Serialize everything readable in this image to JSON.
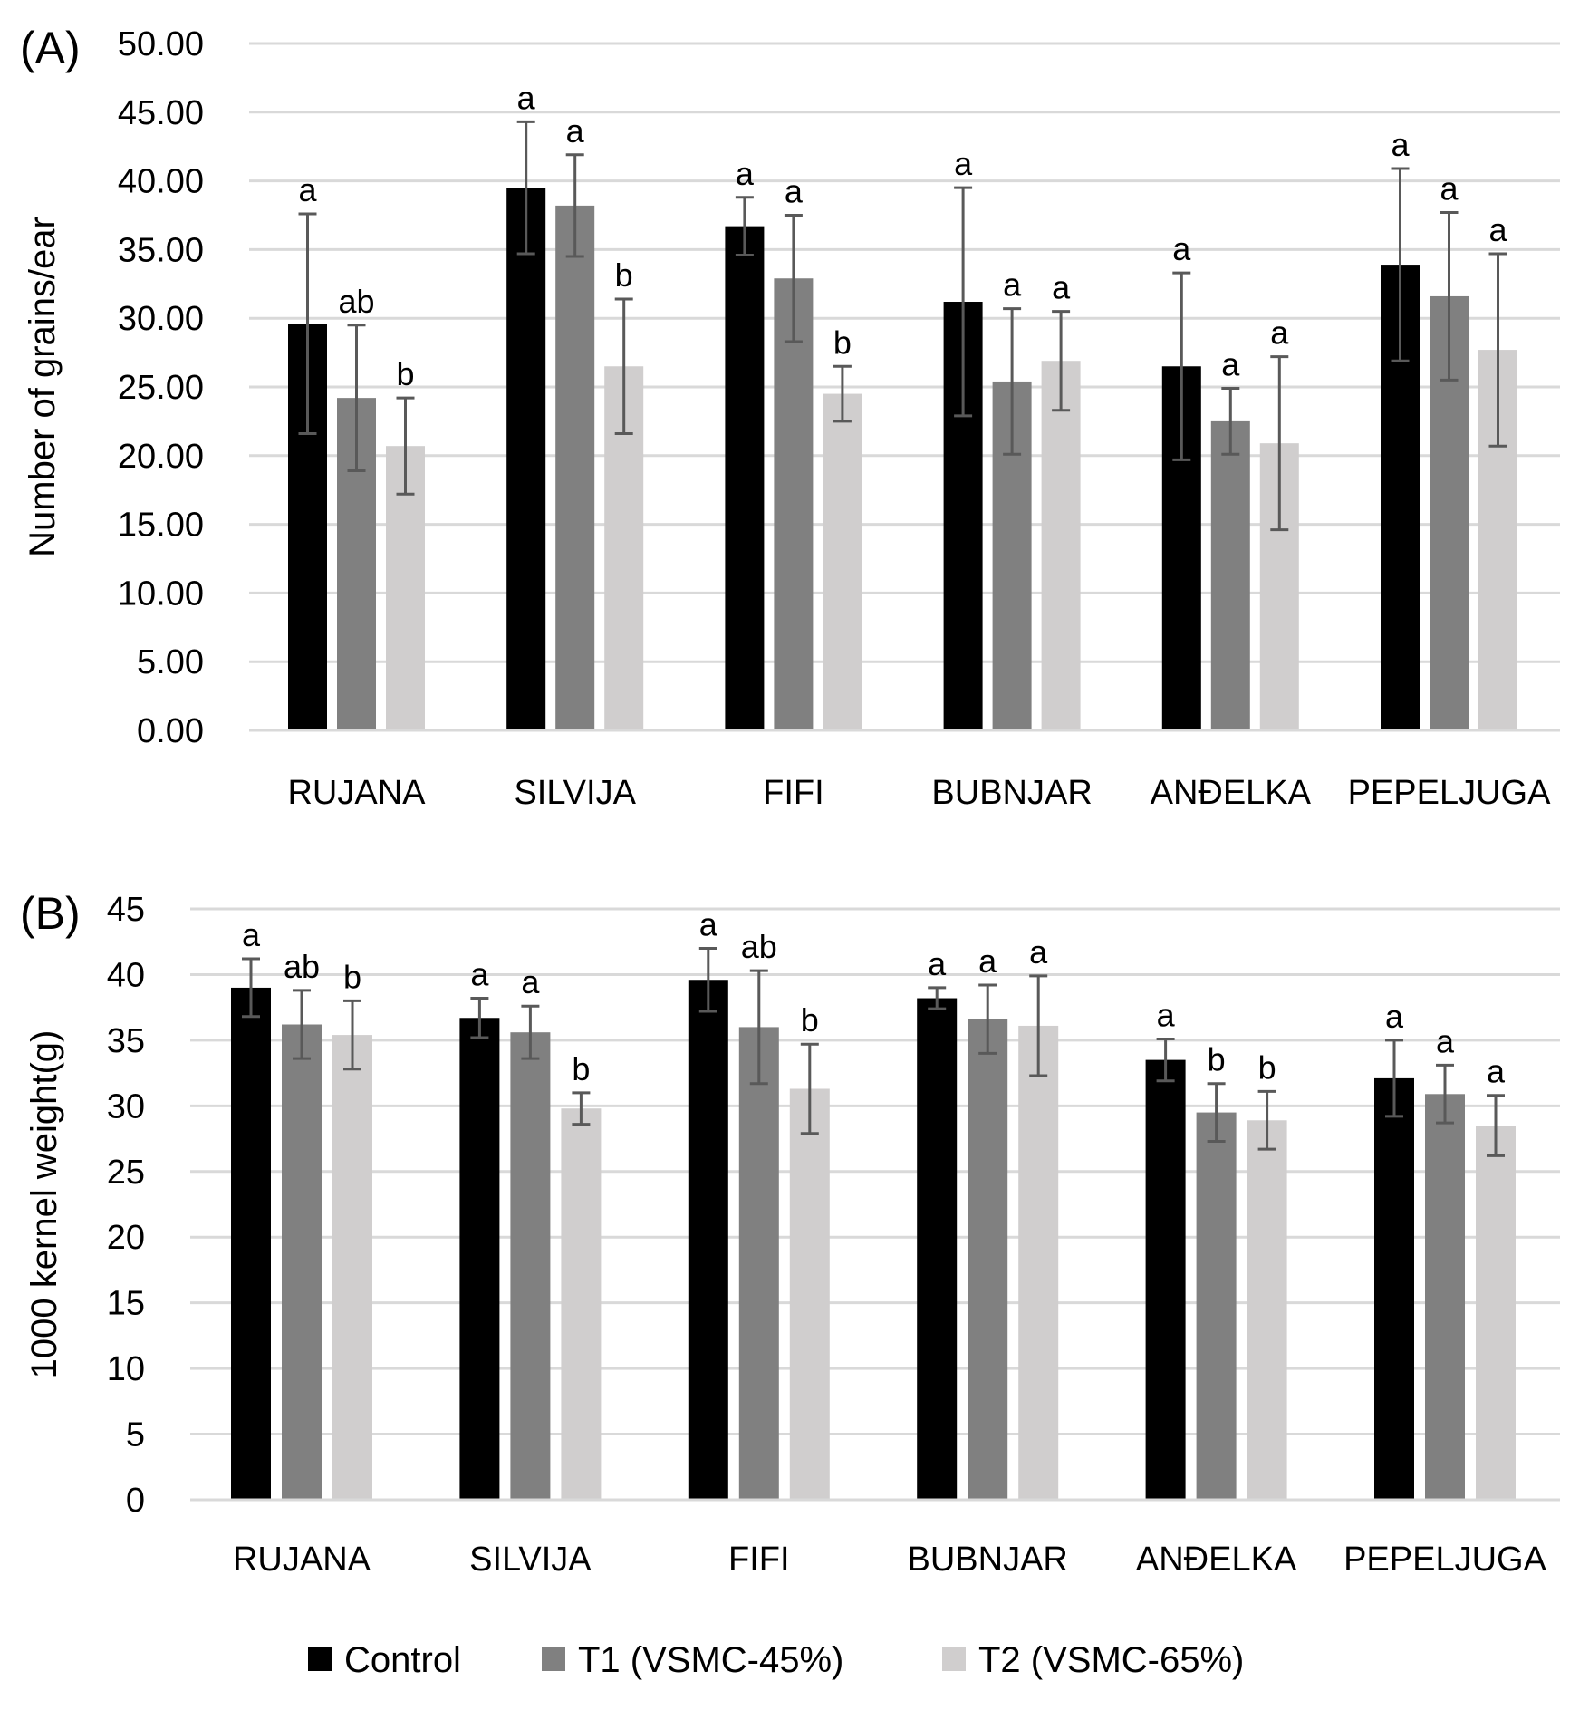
{
  "chart_data": [
    {
      "type": "bar",
      "panel_label": "(A)",
      "ylabel": "Number of grains/ear",
      "xlabel": "",
      "ylim": [
        0,
        50
      ],
      "yticks": [
        "0.00",
        "5.00",
        "10.00",
        "15.00",
        "20.00",
        "25.00",
        "30.00",
        "35.00",
        "40.00",
        "45.00",
        "50.00"
      ],
      "grid": true,
      "categories": [
        "RUJANA",
        "SILVIJA",
        "FIFI",
        "BUBNJAR",
        "ANĐELKA",
        "PEPELJUGA"
      ],
      "series": [
        {
          "name": "Control",
          "color": "#000000",
          "values": [
            29.6,
            39.5,
            36.7,
            31.2,
            26.5,
            33.9
          ],
          "errors": [
            8.0,
            4.8,
            2.1,
            8.3,
            6.8,
            7.0
          ],
          "labels": [
            "a",
            "a",
            "a",
            "a",
            "a",
            "a"
          ]
        },
        {
          "name": "T1 (VSMC-45%)",
          "color": "#808080",
          "values": [
            24.2,
            38.2,
            32.9,
            25.4,
            22.5,
            31.6
          ],
          "errors": [
            5.3,
            3.7,
            4.6,
            5.3,
            2.4,
            6.1
          ],
          "labels": [
            "ab",
            "a",
            "a",
            "a",
            "a",
            "a"
          ]
        },
        {
          "name": "T2 (VSMC-65%)",
          "color": "#d0cece",
          "values": [
            20.7,
            26.5,
            24.5,
            26.9,
            20.9,
            27.7
          ],
          "errors": [
            3.5,
            4.9,
            2.0,
            3.6,
            6.3,
            7.0
          ],
          "labels": [
            "b",
            "b",
            "b",
            "a",
            "a",
            "a"
          ]
        }
      ]
    },
    {
      "type": "bar",
      "panel_label": "(B)",
      "ylabel": "1000 kernel weight(g)",
      "xlabel": "",
      "ylim": [
        0,
        45
      ],
      "yticks": [
        "0",
        "5",
        "10",
        "15",
        "20",
        "25",
        "30",
        "35",
        "40",
        "45"
      ],
      "grid": true,
      "categories": [
        "RUJANA",
        "SILVIJA",
        "FIFI",
        "BUBNJAR",
        "ANĐELKA",
        "PEPELJUGA"
      ],
      "series": [
        {
          "name": "Control",
          "color": "#000000",
          "values": [
            39.0,
            36.7,
            39.6,
            38.2,
            33.5,
            32.1
          ],
          "errors": [
            2.2,
            1.5,
            2.4,
            0.8,
            1.6,
            2.9
          ],
          "labels": [
            "a",
            "a",
            "a",
            "a",
            "a",
            "a"
          ]
        },
        {
          "name": "T1 (VSMC-45%)",
          "color": "#808080",
          "values": [
            36.2,
            35.6,
            36.0,
            36.6,
            29.5,
            30.9
          ],
          "errors": [
            2.6,
            2.0,
            4.3,
            2.6,
            2.2,
            2.2
          ],
          "labels": [
            "ab",
            "a",
            "ab",
            "a",
            "b",
            "a"
          ]
        },
        {
          "name": "T2 (VSMC-65%)",
          "color": "#d0cece",
          "values": [
            35.4,
            29.8,
            31.3,
            36.1,
            28.9,
            28.5
          ],
          "errors": [
            2.6,
            1.2,
            3.4,
            3.8,
            2.2,
            2.3
          ],
          "labels": [
            "b",
            "b",
            "b",
            "a",
            "b",
            "a"
          ]
        }
      ]
    }
  ],
  "legend": {
    "placement": "bottom",
    "items": [
      {
        "label": "Control",
        "color": "#000000"
      },
      {
        "label": "T1 (VSMC-45%)",
        "color": "#808080"
      },
      {
        "label": "T2 (VSMC-65%)",
        "color": "#d0cece"
      }
    ]
  }
}
